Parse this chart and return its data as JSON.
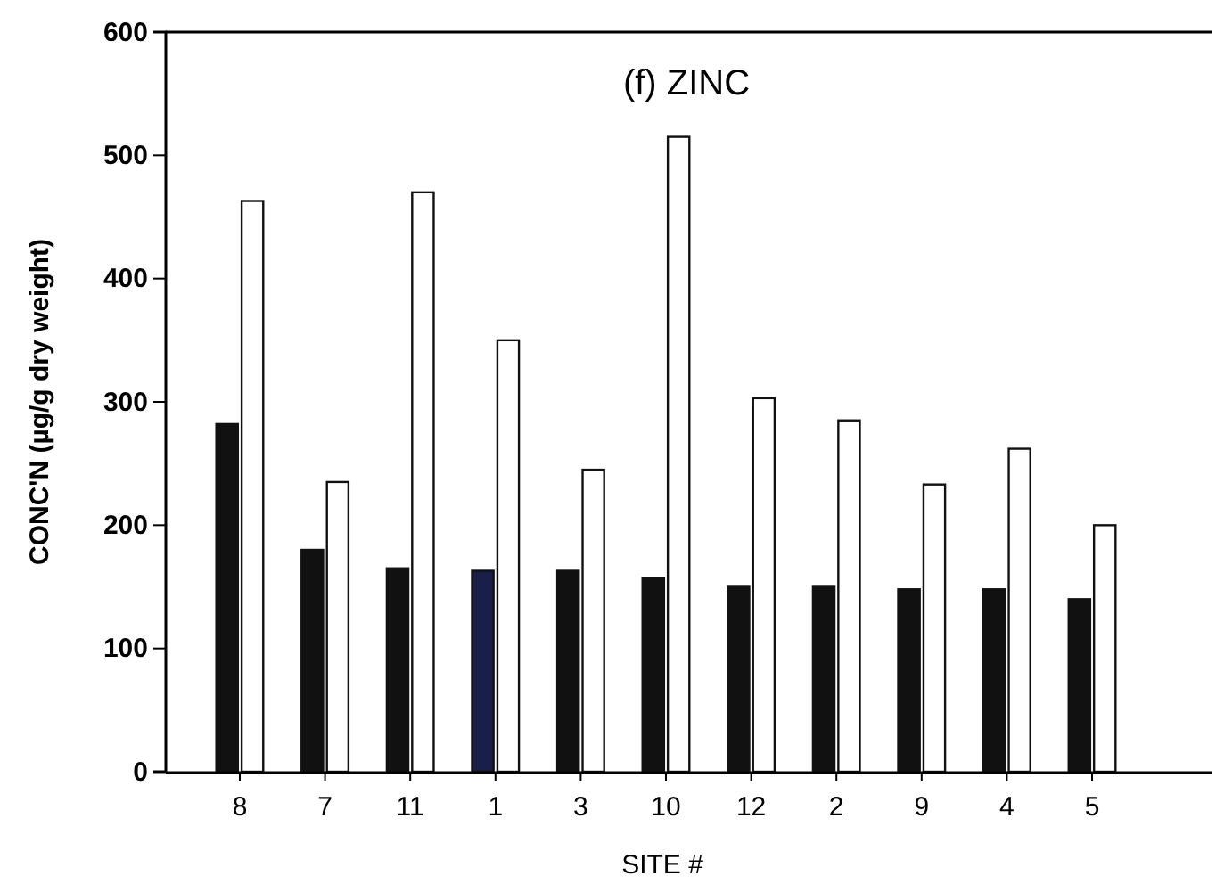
{
  "chart_data": {
    "type": "bar",
    "title": "(f) ZINC",
    "xlabel": "SITE #",
    "ylabel": "CONC'N (µg/g dry weight)",
    "categories": [
      "8",
      "7",
      "11",
      "1",
      "3",
      "10",
      "12",
      "2",
      "9",
      "4",
      "5"
    ],
    "series": [
      {
        "colors": [
          "#111111",
          "#111111",
          "#111111",
          "#1a1f4a",
          "#111111",
          "#111111",
          "#111111",
          "#111111",
          "#111111",
          "#111111",
          "#111111"
        ],
        "values": [
          282,
          180,
          165,
          163,
          163,
          157,
          150,
          150,
          148,
          148,
          140
        ]
      },
      {
        "color": "#ffffff",
        "values": [
          463,
          235,
          470,
          350,
          245,
          515,
          303,
          285,
          233,
          262,
          200
        ]
      }
    ],
    "ylim": [
      0,
      600
    ],
    "yticks": [
      0,
      100,
      200,
      300,
      400,
      500,
      600
    ],
    "grid": false
  }
}
